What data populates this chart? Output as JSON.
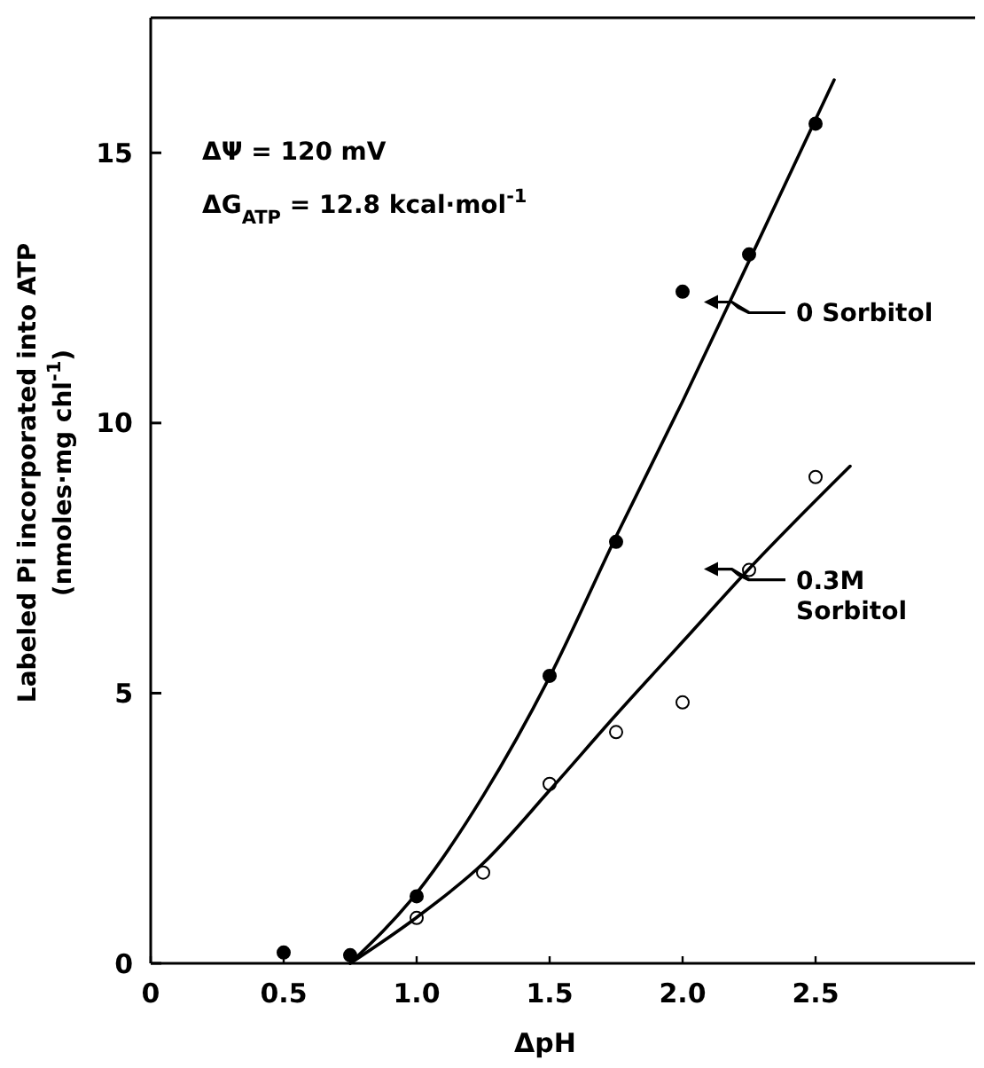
{
  "chart_data": {
    "type": "scatter",
    "xlabel": "ΔpH",
    "ylabel": "Labeled Pi incorporated into ATP\n(nmoles·mg chl$^{-1}$)",
    "xlim": [
      0,
      3.1
    ],
    "ylim": [
      0,
      17.5
    ],
    "xticks": [
      0,
      0.5,
      {
        "value": 1,
        "label": "1.0"
      },
      {
        "value": 1.5,
        "label": "1.5"
      },
      {
        "value": 2,
        "label": "2.0"
      },
      {
        "value": 2.5,
        "label": "2.5"
      }
    ],
    "yticks": [
      0,
      5,
      10,
      15
    ],
    "annotations": [
      "ΔΨ = 120 mV",
      "ΔG$_{ATP}$ = 12.8 kcal·mol$^{-1}$"
    ],
    "series": [
      {
        "marker": "circle",
        "color": "#000000",
        "x": [
          0.5,
          0.75,
          1,
          1.5,
          1.75,
          2,
          2.25,
          2.5
        ],
        "values": [
          0.2,
          0.15,
          1.24,
          5.32,
          7.8,
          12.43,
          13.12,
          15.54
        ]
      },
      {
        "type": "line",
        "name": "0 Sorbitol",
        "color": "#000000",
        "x": [
          0.75,
          1,
          1.25,
          1.5,
          1.75,
          2,
          2.25,
          2.57
        ],
        "values": [
          0,
          1.3,
          3.1,
          5.3,
          7.9,
          10.4,
          13,
          16.35
        ]
      },
      {
        "marker": "circle",
        "color": "#ffffff",
        "x": [
          1,
          1.25,
          1.5,
          1.75,
          2,
          2.25,
          2.5
        ],
        "values": [
          0.84,
          1.68,
          3.32,
          4.28,
          4.83,
          7.28,
          9
        ]
      },
      {
        "type": "line",
        "name": "0.3M Sorbitol",
        "color": "#000000",
        "x": [
          0.75,
          1,
          1.25,
          1.5,
          1.75,
          2,
          2.25,
          2.63
        ],
        "values": [
          0,
          0.85,
          1.85,
          3.2,
          4.6,
          5.95,
          7.3,
          9.2
        ]
      }
    ],
    "legend": "right"
  }
}
